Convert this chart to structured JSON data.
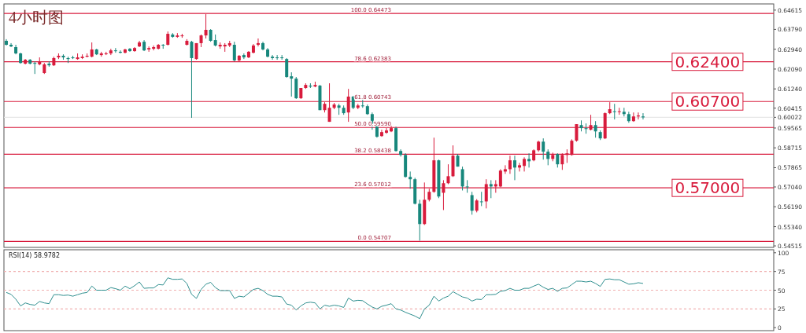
{
  "chart_data": [
    {
      "type": "candlestick",
      "title": "4小时图",
      "tick_labels": "y",
      "categories": [
        null,
        null,
        null,
        null,
        null,
        null,
        null,
        null,
        null,
        null,
        null,
        null,
        null,
        null,
        null,
        null,
        null,
        null,
        null,
        null,
        null,
        null,
        null,
        null,
        null,
        null,
        null,
        null,
        null,
        null,
        null,
        null,
        null,
        null,
        null,
        null,
        null,
        null,
        null,
        null,
        null,
        null,
        null,
        null,
        null,
        null,
        null,
        null,
        null,
        null,
        null,
        null,
        null,
        null,
        null,
        null,
        null,
        null,
        null,
        null,
        null,
        null,
        null,
        null,
        null,
        null,
        null,
        null,
        null,
        null,
        null,
        null,
        null,
        null,
        null,
        null,
        null,
        null,
        null,
        null,
        null,
        null,
        null,
        null,
        null,
        null,
        null,
        null,
        null,
        null,
        null,
        null,
        null,
        null,
        null,
        null,
        null,
        null,
        null,
        null,
        null,
        null,
        null,
        null,
        null,
        null,
        null,
        null,
        null,
        null,
        null,
        null,
        null,
        null,
        null,
        null,
        null,
        null,
        null,
        null,
        null,
        null,
        null,
        null,
        null,
        null,
        null,
        null,
        null,
        null,
        null,
        null,
        null,
        null,
        null,
        null,
        null,
        null,
        null,
        null,
        null,
        null,
        null,
        null,
        null,
        null,
        null,
        null,
        null,
        null,
        null,
        null,
        null,
        null,
        null,
        null,
        null,
        null,
        null,
        null,
        null,
        null
      ],
      "ohlc": [
        [
          0.633,
          0.6337,
          0.631,
          0.6313
        ],
        [
          0.6313,
          0.632,
          0.6303,
          0.6306
        ],
        [
          0.6303,
          0.6313,
          0.6272,
          0.6276
        ],
        [
          0.6276,
          0.6279,
          0.6232,
          0.6235
        ],
        [
          0.6232,
          0.6252,
          0.6229,
          0.6249
        ],
        [
          0.6249,
          0.6252,
          0.6229,
          0.6232
        ],
        [
          0.6235,
          0.6242,
          0.6188,
          0.6232
        ],
        [
          0.6229,
          0.6259,
          0.6225,
          0.6242
        ],
        [
          0.6192,
          0.6235,
          0.6188,
          0.6229
        ],
        [
          0.6232,
          0.6242,
          0.6219,
          0.6225
        ],
        [
          0.6225,
          0.6262,
          0.6222,
          0.6256
        ],
        [
          0.6259,
          0.6276,
          0.6252,
          0.6266
        ],
        [
          0.6266,
          0.6272,
          0.6249,
          0.6259
        ],
        [
          0.6256,
          0.6262,
          0.6235,
          0.6252
        ],
        [
          0.6259,
          0.6266,
          0.6252,
          0.6256
        ],
        [
          0.6252,
          0.6276,
          0.6249,
          0.6259
        ],
        [
          0.6256,
          0.6272,
          0.6252,
          0.6262
        ],
        [
          0.6262,
          0.6276,
          0.6259,
          0.6266
        ],
        [
          0.6262,
          0.6323,
          0.6259,
          0.6293
        ],
        [
          0.6293,
          0.6296,
          0.6269,
          0.6272
        ],
        [
          0.6269,
          0.6283,
          0.6262,
          0.6276
        ],
        [
          0.6274,
          0.6283,
          0.6269,
          0.6276
        ],
        [
          0.6276,
          0.6296,
          0.6269,
          0.6289
        ],
        [
          0.6289,
          0.6299,
          0.6279,
          0.6286
        ],
        [
          0.6283,
          0.6289,
          0.6276,
          0.6279
        ],
        [
          0.6279,
          0.6296,
          0.6276,
          0.6293
        ],
        [
          0.6296,
          0.6299,
          0.6283,
          0.6286
        ],
        [
          0.6286,
          0.6303,
          0.6283,
          0.6299
        ],
        [
          0.6306,
          0.633,
          0.6303,
          0.6323
        ],
        [
          0.6326,
          0.6333,
          0.6286,
          0.6289
        ],
        [
          0.6293,
          0.6306,
          0.6283,
          0.6299
        ],
        [
          0.6296,
          0.631,
          0.6289,
          0.6303
        ],
        [
          0.6296,
          0.6316,
          0.6293,
          0.6313
        ],
        [
          0.6313,
          0.6316,
          0.6296,
          0.631
        ],
        [
          0.6313,
          0.637,
          0.631,
          0.636
        ],
        [
          0.6357,
          0.6363,
          0.6343,
          0.6347
        ],
        [
          0.6347,
          0.6363,
          0.6343,
          0.6353
        ],
        [
          0.635,
          0.636,
          0.6343,
          0.6353
        ],
        [
          0.6313,
          0.6337,
          0.631,
          0.633
        ],
        [
          0.6326,
          0.633,
          0.6,
          0.6256
        ],
        [
          0.6252,
          0.632,
          0.6249,
          0.632
        ],
        [
          0.632,
          0.6357,
          0.6303,
          0.6353
        ],
        [
          0.6353,
          0.6444,
          0.634,
          0.6377
        ],
        [
          0.6377,
          0.638,
          0.6326,
          0.633
        ],
        [
          0.6333,
          0.6357,
          0.6306,
          0.631
        ],
        [
          0.6306,
          0.6323,
          0.6296,
          0.6313
        ],
        [
          0.6306,
          0.632,
          0.6283,
          0.6313
        ],
        [
          0.631,
          0.633,
          0.6303,
          0.632
        ],
        [
          0.6313,
          0.6326,
          0.6242,
          0.6246
        ],
        [
          0.6246,
          0.6269,
          0.6239,
          0.6266
        ],
        [
          0.6269,
          0.6276,
          0.6252,
          0.6259
        ],
        [
          0.6259,
          0.6286,
          0.6256,
          0.6283
        ],
        [
          0.6279,
          0.6316,
          0.6276,
          0.631
        ],
        [
          0.6313,
          0.634,
          0.6306,
          0.632
        ],
        [
          0.632,
          0.6326,
          0.6289,
          0.6293
        ],
        [
          0.6293,
          0.6299,
          0.6259,
          0.6262
        ],
        [
          0.6262,
          0.6269,
          0.6249,
          0.6256
        ],
        [
          0.6259,
          0.6269,
          0.6249,
          0.6256
        ],
        [
          0.6259,
          0.6269,
          0.6249,
          0.6256
        ],
        [
          0.6252,
          0.6256,
          0.6172,
          0.6175
        ],
        [
          0.6178,
          0.6195,
          0.6091,
          0.6168
        ],
        [
          0.6168,
          0.6175,
          0.6081,
          0.6084
        ],
        [
          0.6084,
          0.6128,
          0.6081,
          0.6128
        ],
        [
          0.6128,
          0.6148,
          0.6124,
          0.6141
        ],
        [
          0.6138,
          0.6148,
          0.6128,
          0.6134
        ],
        [
          0.6134,
          0.6155,
          0.6131,
          0.6141
        ],
        [
          0.6138,
          0.6141,
          0.6033,
          0.6033
        ],
        [
          0.6033,
          0.6067,
          0.6023,
          0.606
        ],
        [
          0.5983,
          0.6148,
          0.5983,
          0.6043
        ],
        [
          0.6043,
          0.6064,
          0.6037,
          0.6057
        ],
        [
          0.6053,
          0.606,
          0.6013,
          0.6043
        ],
        [
          0.6043,
          0.6053,
          0.6013,
          0.602
        ],
        [
          0.6023,
          0.6124,
          0.5983,
          0.6091
        ],
        [
          0.6091,
          0.6094,
          0.6037,
          0.6043
        ],
        [
          0.6043,
          0.606,
          0.6037,
          0.6053
        ],
        [
          0.6053,
          0.6084,
          0.6043,
          0.605
        ],
        [
          0.605,
          0.6057,
          0.6013,
          0.6016
        ],
        [
          0.6016,
          0.6023,
          0.5949,
          0.5966
        ],
        [
          0.5966,
          0.5973,
          0.5915,
          0.5919
        ],
        [
          0.5922,
          0.5949,
          0.5919,
          0.5939
        ],
        [
          0.5936,
          0.5956,
          0.5932,
          0.5946
        ],
        [
          0.5942,
          0.5966,
          0.5939,
          0.5956
        ],
        [
          0.5956,
          0.5962,
          0.5855,
          0.5858
        ],
        [
          0.5858,
          0.5865,
          0.5834,
          0.5841
        ],
        [
          0.5841,
          0.5848,
          0.5744,
          0.5747
        ],
        [
          0.5747,
          0.577,
          0.5696,
          0.5737
        ],
        [
          0.5737,
          0.5743,
          0.5629,
          0.5632
        ],
        [
          0.5632,
          0.5649,
          0.5474,
          0.5545
        ],
        [
          0.5545,
          0.5723,
          0.5541,
          0.5649
        ],
        [
          0.5649,
          0.5696,
          0.5642,
          0.5683
        ],
        [
          0.5683,
          0.5915,
          0.5679,
          0.5818
        ],
        [
          0.5818,
          0.5821,
          0.5656,
          0.5663
        ],
        [
          0.5679,
          0.5733,
          0.5605,
          0.572
        ],
        [
          0.572,
          0.5801,
          0.5716,
          0.575
        ],
        [
          0.575,
          0.5882,
          0.5747,
          0.5838
        ],
        [
          0.5838,
          0.5845,
          0.5791,
          0.5791
        ],
        [
          0.578,
          0.5791,
          0.5689,
          0.5706
        ],
        [
          0.5706,
          0.5733,
          0.5679,
          0.5703
        ],
        [
          0.5669,
          0.5683,
          0.5585,
          0.5602
        ],
        [
          0.5602,
          0.5652,
          0.5595,
          0.5646
        ],
        [
          0.5642,
          0.5683,
          0.5622,
          0.5639
        ],
        [
          0.5642,
          0.5737,
          0.5612,
          0.5716
        ],
        [
          0.5716,
          0.5733,
          0.5656,
          0.5706
        ],
        [
          0.5706,
          0.5733,
          0.5679,
          0.5716
        ],
        [
          0.5706,
          0.578,
          0.5703,
          0.5774
        ],
        [
          0.577,
          0.5797,
          0.576,
          0.578
        ],
        [
          0.578,
          0.5838,
          0.576,
          0.5818
        ],
        [
          0.5818,
          0.5838,
          0.5733,
          0.5787
        ],
        [
          0.5787,
          0.5807,
          0.577,
          0.5797
        ],
        [
          0.5794,
          0.5831,
          0.577,
          0.5824
        ],
        [
          0.5824,
          0.5848,
          0.5787,
          0.5814
        ],
        [
          0.5818,
          0.5865,
          0.5814,
          0.5861
        ],
        [
          0.5861,
          0.5902,
          0.5855,
          0.5898
        ],
        [
          0.5898,
          0.5912,
          0.5821,
          0.5855
        ],
        [
          0.5855,
          0.5865,
          0.5797,
          0.5824
        ],
        [
          0.5824,
          0.5851,
          0.5814,
          0.5841
        ],
        [
          0.5845,
          0.5848,
          0.5787,
          0.5801
        ],
        [
          0.5801,
          0.5848,
          0.5777,
          0.5841
        ],
        [
          0.5841,
          0.5865,
          0.5807,
          0.5848
        ],
        [
          0.5841,
          0.5908,
          0.5838,
          0.5902
        ],
        [
          0.5902,
          0.5973,
          0.5898,
          0.5973
        ],
        [
          0.5969,
          0.5989,
          0.5942,
          0.5956
        ],
        [
          0.5956,
          0.5976,
          0.5932,
          0.5952
        ],
        [
          0.5949,
          0.6013,
          0.5946,
          0.5969
        ],
        [
          0.5969,
          0.5986,
          0.5915,
          0.5942
        ],
        [
          0.5939,
          0.5946,
          0.5905,
          0.5912
        ],
        [
          0.5912,
          0.6023,
          0.5909,
          0.602
        ],
        [
          0.602,
          0.6067,
          0.6016,
          0.6037
        ],
        [
          0.6028,
          0.606,
          0.5993,
          0.6026
        ],
        [
          0.6026,
          0.6043,
          0.6013,
          0.6028
        ],
        [
          0.6026,
          0.6043,
          0.6006,
          0.6016
        ],
        [
          0.6016,
          0.6026,
          0.5979,
          0.5986
        ],
        [
          0.5986,
          0.6023,
          0.5983,
          0.6006
        ],
        [
          0.6006,
          0.6023,
          0.5993,
          0.601
        ],
        [
          0.6006,
          0.602,
          0.5993,
          0.6002
        ],
        null,
        null,
        null,
        null,
        null,
        null,
        null,
        null,
        null,
        null,
        null,
        null,
        null,
        null,
        null,
        null,
        null,
        null,
        null,
        null,
        null,
        null,
        null,
        null,
        null,
        null,
        null
      ],
      "colors": [
        "#17877c",
        "#17877c",
        "#17877c",
        "#17877c",
        "#d81b3c",
        "#17877c",
        "#17877c",
        "#d81b3c",
        "#d81b3c",
        "#17877c",
        "#d81b3c",
        "#d81b3c",
        "#17877c",
        "#17877c",
        "#17877c",
        "#d81b3c",
        "#d81b3c",
        "#d81b3c",
        "#d81b3c",
        "#17877c",
        "#d81b3c",
        "#d81b3c",
        "#d81b3c",
        "#17877c",
        "#17877c",
        "#d81b3c",
        "#17877c",
        "#d81b3c",
        "#d81b3c",
        "#17877c",
        "#d81b3c",
        "#d81b3c",
        "#d81b3c",
        "#17877c",
        "#d81b3c",
        "#17877c",
        "#d81b3c",
        "#d81b3c",
        "#d81b3c",
        "#17877c",
        "#d81b3c",
        "#d81b3c",
        "#d81b3c",
        "#17877c",
        "#17877c",
        "#d81b3c",
        "#d81b3c",
        "#d81b3c",
        "#17877c",
        "#d81b3c",
        "#17877c",
        "#d81b3c",
        "#d81b3c",
        "#d81b3c",
        "#17877c",
        "#17877c",
        "#17877c",
        "#17877c",
        "#17877c",
        "#17877c",
        "#17877c",
        "#17877c",
        "#d81b3c",
        "#d81b3c",
        "#17877c",
        "#d81b3c",
        "#17877c",
        "#d81b3c",
        "#d81b3c",
        "#d81b3c",
        "#17877c",
        "#17877c",
        "#d81b3c",
        "#17877c",
        "#d81b3c",
        "#17877c",
        "#17877c",
        "#17877c",
        "#17877c",
        "#d81b3c",
        "#d81b3c",
        "#d81b3c",
        "#17877c",
        "#17877c",
        "#17877c",
        "#17877c",
        "#17877c",
        "#17877c",
        "#d81b3c",
        "#d81b3c",
        "#d81b3c",
        "#17877c",
        "#d81b3c",
        "#d81b3c",
        "#d81b3c",
        "#17877c",
        "#17877c",
        "#17877c",
        "#17877c",
        "#d81b3c",
        "#17877c",
        "#d81b3c",
        "#17877c",
        "#d81b3c",
        "#d81b3c",
        "#d81b3c",
        "#d81b3c",
        "#17877c",
        "#d81b3c",
        "#d81b3c",
        "#17877c",
        "#d81b3c",
        "#d81b3c",
        "#17877c",
        "#17877c",
        "#d81b3c",
        "#17877c",
        "#d81b3c",
        "#d81b3c",
        "#d81b3c",
        "#d81b3c",
        "#17877c",
        "#17877c",
        "#d81b3c",
        "#17877c",
        "#17877c",
        "#d81b3c",
        "#d81b3c",
        "#17877c",
        "#d81b3c",
        "#17877c",
        "#17877c",
        "#d81b3c",
        "#d81b3c",
        "#17877c",
        null,
        null,
        null,
        null,
        null,
        null,
        null,
        null,
        null,
        null,
        null,
        null,
        null,
        null,
        null,
        null,
        null,
        null,
        null,
        null,
        null,
        null,
        null,
        null,
        null,
        null,
        null
      ],
      "ylim": [
        0.5445,
        0.6488
      ],
      "yticks": [
        0.64615,
        {
          "value": 0.6379,
          "label": "0.63790"
        },
        {
          "value": 0.6294,
          "label": "0.62940"
        },
        {
          "value": 0.6209,
          "label": "0.62090"
        },
        {
          "value": 0.6124,
          "label": "0.61240"
        },
        0.60415,
        0.60022,
        0.59565,
        0.58715,
        0.57865,
        {
          "value": 0.5704,
          "label": "0.57040"
        },
        {
          "value": 0.5619,
          "label": "0.56190"
        },
        {
          "value": 0.5534,
          "label": "0.55340"
        },
        0.54515
      ],
      "ref_lines": [
        {
          "axis": "y",
          "value": 0.60022,
          "color": "#e6e6e6"
        },
        {
          "axis": "y",
          "value": 0.64473,
          "color": "#d81b3c"
        },
        {
          "axis": "y",
          "value": 0.5959,
          "color": "#d81b3c"
        },
        {
          "axis": "y",
          "value": 0.58438,
          "color": "#d81b3c"
        },
        {
          "axis": "y",
          "value": 0.54707,
          "color": "#d81b3c"
        },
        {
          "axis": "y",
          "value": 0.624,
          "label": "0.62400",
          "color": "#d81b3c"
        },
        {
          "axis": "y",
          "value": 0.607,
          "label": "0.60700",
          "color": "#d81b3c"
        },
        {
          "axis": "y",
          "value": 0.57,
          "label": "0.57000",
          "color": "#d81b3c"
        }
      ],
      "annotations": [
        {
          "text": "100.0 0.64473",
          "y": 0.64473
        },
        {
          "text": "78.6 0.62383",
          "y": 0.62383
        },
        {
          "text": "61.8 0.60743",
          "y": 0.60743
        },
        {
          "text": "50.0 0.59590",
          "y": 0.5959
        },
        {
          "text": "38.2 0.58438",
          "y": 0.58438
        },
        {
          "text": "23.6 0.57012",
          "y": 0.57012
        },
        {
          "text": "0.0 0.54707",
          "y": 0.54707
        }
      ]
    },
    {
      "type": "line",
      "title": "RSI(14) 58.9782",
      "tick_labels": "y",
      "categories": [
        null,
        null,
        null,
        null,
        null,
        null,
        null,
        null,
        null,
        null,
        null,
        null,
        null,
        null,
        null,
        null,
        null,
        null,
        null,
        null,
        null,
        null,
        null,
        null,
        null,
        null,
        null,
        null,
        null,
        null,
        null,
        null,
        null,
        null,
        null,
        null,
        null,
        null,
        null,
        null,
        null,
        null,
        null,
        null,
        null,
        null,
        null,
        null,
        null,
        null,
        null,
        null,
        null,
        null,
        null,
        null,
        null,
        null,
        null,
        null,
        null,
        null,
        null,
        null,
        null,
        null,
        null,
        null,
        null,
        null,
        null,
        null,
        null,
        null,
        null,
        null,
        null,
        null,
        null,
        null,
        null,
        null,
        null,
        null,
        null,
        null,
        null,
        null,
        null,
        null,
        null,
        null,
        null,
        null,
        null,
        null,
        null,
        null,
        null,
        null,
        null,
        null,
        null,
        null,
        null,
        null,
        null,
        null,
        null,
        null,
        null,
        null,
        null,
        null,
        null,
        null,
        null,
        null,
        null,
        null,
        null,
        null,
        null,
        null,
        null,
        null,
        null,
        null,
        null,
        null,
        null,
        null,
        null,
        null,
        null,
        null,
        null,
        null,
        null,
        null,
        null,
        null,
        null,
        null,
        null,
        null,
        null,
        null,
        null,
        null,
        null,
        null,
        null,
        null,
        null,
        null,
        null,
        null,
        null,
        null,
        null,
        null
      ],
      "series": [
        {
          "color": "#2f8f8f",
          "values": [
            47,
            44.5,
            38,
            29,
            33,
            31,
            30,
            35,
            33,
            32,
            44,
            44,
            43,
            43.5,
            42,
            44,
            46,
            47,
            55.5,
            50,
            50,
            50,
            53.5,
            52,
            50,
            55.5,
            52,
            56,
            61,
            52.5,
            53,
            53,
            57.5,
            57,
            66.5,
            64.5,
            64.5,
            65,
            59,
            44.5,
            39,
            51,
            58,
            60.5,
            53.5,
            49.5,
            49.5,
            49.5,
            39,
            42,
            41,
            46,
            51,
            52.5,
            49.5,
            44.5,
            42,
            42,
            41,
            31.5,
            30,
            23.5,
            29,
            33,
            34,
            33,
            25,
            30,
            28.5,
            30,
            29,
            27,
            39.5,
            35.5,
            36.5,
            36,
            31.5,
            27.5,
            25,
            28.5,
            30,
            32,
            25,
            23.5,
            20.5,
            18,
            15.5,
            12,
            25,
            30,
            42,
            35.5,
            39.5,
            42,
            48,
            44.5,
            41,
            39.5,
            35.5,
            38,
            37.5,
            44,
            44,
            44.5,
            48.5,
            49.5,
            52.5,
            50,
            50,
            52.5,
            52.5,
            55.5,
            58,
            54,
            51,
            52.5,
            48.5,
            52.5,
            53,
            57.5,
            62,
            62,
            61,
            62,
            59,
            55,
            64.5,
            65,
            64,
            64,
            61,
            58,
            58.5,
            60,
            59,
            null,
            null,
            null,
            null,
            null,
            null,
            null,
            null,
            null,
            null,
            null,
            null,
            null,
            null,
            null,
            null,
            null,
            null,
            null,
            null,
            null,
            null,
            null,
            null,
            null,
            null,
            null
          ]
        }
      ],
      "ylim": [
        -4,
        104
      ],
      "yticks": [
        0,
        25,
        50,
        75,
        100
      ],
      "ref_lines": [
        {
          "axis": "y",
          "value": 75,
          "color": "#f0b0b0",
          "line_style": "dashed"
        },
        {
          "axis": "y",
          "value": 50,
          "color": "#f0b0b0",
          "line_style": "dashed"
        },
        {
          "axis": "y",
          "value": 25,
          "color": "#f0b0b0",
          "line_style": "dashed"
        }
      ]
    }
  ]
}
